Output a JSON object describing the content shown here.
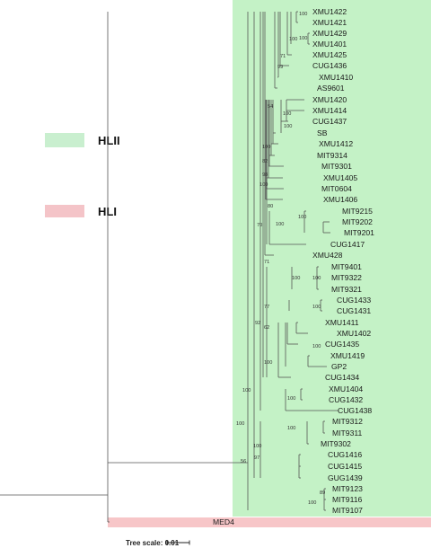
{
  "colors": {
    "hlii": "#c4f2c6",
    "hli": "#f7c6c8",
    "hlii_legend": "#c9efcf",
    "hli_legend": "#f4c4c8",
    "branch": "#555555"
  },
  "legend": [
    {
      "label": "HLII",
      "color": "#c9efcf"
    },
    {
      "label": "HLI",
      "color": "#f4c4c8"
    }
  ],
  "scale": {
    "label": "Tree scale: 0.01"
  },
  "leaves": [
    "XMU1422",
    "XMU1421",
    "XMU1429",
    "XMU1401",
    "XMU1425",
    "CUG1436",
    "XMU1410",
    "AS9601",
    "XMU1420",
    "XMU1414",
    "CUG1437",
    "SB",
    "XMU1412",
    "MIT9314",
    "MIT9301",
    "XMU1405",
    "MIT0604",
    "XMU1406",
    "MIT9215",
    "MIT9202",
    "MIT9201",
    "CUG1417",
    "XMU428",
    "MIT9401",
    "MIT9322",
    "MIT9321",
    "CUG1433",
    "CUG1431",
    "XMU1411",
    "XMU1402",
    "CUG1435",
    "XMU1419",
    "GP2",
    "CUG1434",
    "XMU1404",
    "CUG1432",
    "CUG1438",
    "MIT9312",
    "MIT9311",
    "MIT9302",
    "CUG1416",
    "CUG1415",
    "GUG1439",
    "MIT9123",
    "MIT9116",
    "MIT9107",
    "MED4"
  ],
  "bootstrap": [
    "100",
    "100",
    "100",
    "71",
    "99",
    "54",
    "100",
    "100",
    "100",
    "82",
    "98",
    "100",
    "80",
    "100",
    "70",
    "100",
    "71",
    "100",
    "100",
    "77",
    "100",
    "92",
    "62",
    "100",
    "100",
    "100",
    "100",
    "100",
    "100",
    "100",
    "97",
    "56",
    "89",
    "100"
  ]
}
